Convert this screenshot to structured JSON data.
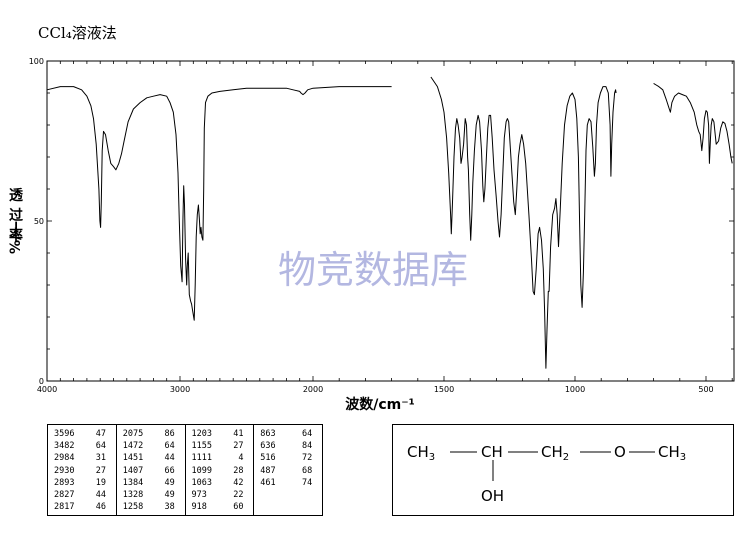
{
  "title": "CCl₄溶液法",
  "chart_data": {
    "type": "line",
    "xlabel": "波数/cm⁻¹",
    "ylabel_chars": [
      "透",
      "过",
      "率"
    ],
    "ylabel_unit": "%/—",
    "xlim": [
      4000,
      400
    ],
    "ylim": [
      0,
      100
    ],
    "x_ticks": [
      4000,
      3000,
      2000,
      1500,
      1000,
      500
    ],
    "y_ticks": [
      0,
      50,
      100
    ],
    "grid": false,
    "series": [
      {
        "segment": "4000-1700",
        "points": [
          [
            4000,
            91
          ],
          [
            3900,
            92
          ],
          [
            3800,
            92
          ],
          [
            3740,
            91
          ],
          [
            3700,
            89
          ],
          [
            3670,
            86
          ],
          [
            3650,
            82
          ],
          [
            3630,
            74
          ],
          [
            3610,
            60
          ],
          [
            3602,
            50
          ],
          [
            3597,
            48
          ],
          [
            3592,
            56
          ],
          [
            3585,
            72
          ],
          [
            3575,
            78
          ],
          [
            3560,
            77
          ],
          [
            3540,
            72
          ],
          [
            3520,
            68
          ],
          [
            3500,
            67
          ],
          [
            3482,
            66
          ],
          [
            3460,
            68
          ],
          [
            3440,
            71
          ],
          [
            3420,
            75
          ],
          [
            3390,
            81
          ],
          [
            3350,
            85
          ],
          [
            3300,
            87
          ],
          [
            3250,
            88.5
          ],
          [
            3200,
            89
          ],
          [
            3150,
            89.5
          ],
          [
            3100,
            89
          ],
          [
            3075,
            87
          ],
          [
            3050,
            84
          ],
          [
            3030,
            77
          ],
          [
            3015,
            65
          ],
          [
            3005,
            50
          ],
          [
            2995,
            36
          ],
          [
            2984,
            31
          ],
          [
            2978,
            50
          ],
          [
            2972,
            61
          ],
          [
            2966,
            55
          ],
          [
            2958,
            38
          ],
          [
            2950,
            30
          ],
          [
            2945,
            36
          ],
          [
            2938,
            40
          ],
          [
            2930,
            27
          ],
          [
            2920,
            25
          ],
          [
            2913,
            24
          ],
          [
            2905,
            22
          ],
          [
            2893,
            19
          ],
          [
            2886,
            30
          ],
          [
            2878,
            45
          ],
          [
            2870,
            52
          ],
          [
            2862,
            55
          ],
          [
            2855,
            51
          ],
          [
            2848,
            46
          ],
          [
            2842,
            48
          ],
          [
            2835,
            45
          ],
          [
            2828,
            44
          ],
          [
            2822,
            60
          ],
          [
            2817,
            79
          ],
          [
            2808,
            87
          ],
          [
            2790,
            89
          ],
          [
            2760,
            90
          ],
          [
            2700,
            90.5
          ],
          [
            2600,
            91
          ],
          [
            2500,
            91.5
          ],
          [
            2400,
            91.5
          ],
          [
            2300,
            91.5
          ],
          [
            2200,
            91.5
          ],
          [
            2150,
            91
          ],
          [
            2100,
            90.5
          ],
          [
            2090,
            90
          ],
          [
            2075,
            89.5
          ],
          [
            2060,
            90
          ],
          [
            2040,
            91
          ],
          [
            2000,
            91.5
          ],
          [
            1900,
            92
          ],
          [
            1800,
            92
          ],
          [
            1700,
            92
          ]
        ]
      },
      {
        "segment": "1550-820",
        "points": [
          [
            1550,
            95
          ],
          [
            1525,
            92
          ],
          [
            1510,
            88
          ],
          [
            1500,
            84
          ],
          [
            1490,
            76
          ],
          [
            1482,
            65
          ],
          [
            1475,
            52
          ],
          [
            1472,
            46
          ],
          [
            1468,
            55
          ],
          [
            1462,
            70
          ],
          [
            1456,
            79
          ],
          [
            1451,
            82
          ],
          [
            1446,
            80
          ],
          [
            1440,
            76
          ],
          [
            1435,
            68
          ],
          [
            1431,
            70
          ],
          [
            1425,
            74
          ],
          [
            1419,
            82
          ],
          [
            1414,
            80
          ],
          [
            1410,
            70
          ],
          [
            1407,
            66
          ],
          [
            1402,
            52
          ],
          [
            1398,
            44
          ],
          [
            1394,
            52
          ],
          [
            1390,
            62
          ],
          [
            1384,
            72
          ],
          [
            1377,
            80
          ],
          [
            1370,
            83
          ],
          [
            1364,
            81
          ],
          [
            1357,
            72
          ],
          [
            1352,
            61
          ],
          [
            1348,
            56
          ],
          [
            1344,
            60
          ],
          [
            1338,
            70
          ],
          [
            1333,
            79
          ],
          [
            1328,
            83
          ],
          [
            1322,
            83
          ],
          [
            1316,
            76
          ],
          [
            1309,
            66
          ],
          [
            1301,
            58
          ],
          [
            1294,
            50
          ],
          [
            1288,
            45
          ],
          [
            1282,
            52
          ],
          [
            1276,
            64
          ],
          [
            1270,
            76
          ],
          [
            1263,
            81
          ],
          [
            1258,
            82
          ],
          [
            1253,
            81
          ],
          [
            1246,
            72
          ],
          [
            1240,
            64
          ],
          [
            1234,
            56
          ],
          [
            1228,
            52
          ],
          [
            1222,
            60
          ],
          [
            1216,
            70
          ],
          [
            1210,
            74
          ],
          [
            1203,
            77
          ],
          [
            1196,
            74
          ],
          [
            1188,
            68
          ],
          [
            1176,
            52
          ],
          [
            1166,
            38
          ],
          [
            1160,
            28
          ],
          [
            1155,
            27
          ],
          [
            1148,
            35
          ],
          [
            1141,
            46
          ],
          [
            1135,
            48
          ],
          [
            1128,
            44
          ],
          [
            1121,
            35
          ],
          [
            1116,
            22
          ],
          [
            1111,
            4
          ],
          [
            1107,
            16
          ],
          [
            1102,
            28
          ],
          [
            1099,
            28
          ],
          [
            1093,
            42
          ],
          [
            1085,
            52
          ],
          [
            1078,
            54
          ],
          [
            1073,
            57
          ],
          [
            1068,
            52
          ],
          [
            1063,
            42
          ],
          [
            1056,
            54
          ],
          [
            1049,
            68
          ],
          [
            1040,
            80
          ],
          [
            1030,
            86
          ],
          [
            1020,
            89
          ],
          [
            1010,
            90
          ],
          [
            1000,
            88
          ],
          [
            993,
            82
          ],
          [
            987,
            70
          ],
          [
            982,
            48
          ],
          [
            978,
            30
          ],
          [
            973,
            23
          ],
          [
            968,
            34
          ],
          [
            963,
            52
          ],
          [
            958,
            72
          ],
          [
            953,
            80
          ],
          [
            946,
            82
          ],
          [
            939,
            81
          ],
          [
            932,
            73
          ],
          [
            926,
            64
          ],
          [
            922,
            68
          ],
          [
            918,
            80
          ],
          [
            912,
            87
          ],
          [
            903,
            90
          ],
          [
            893,
            92
          ],
          [
            882,
            92
          ],
          [
            873,
            90
          ],
          [
            866,
            80
          ],
          [
            863,
            64
          ],
          [
            860,
            74
          ],
          [
            855,
            84
          ],
          [
            849,
            90
          ],
          [
            845,
            91
          ],
          [
            843,
            90
          ]
        ]
      },
      {
        "segment": "700-400",
        "points": [
          [
            700,
            93
          ],
          [
            690,
            92.5
          ],
          [
            680,
            92
          ],
          [
            665,
            91
          ],
          [
            652,
            88
          ],
          [
            640,
            85
          ],
          [
            636,
            84
          ],
          [
            630,
            87
          ],
          [
            620,
            89
          ],
          [
            605,
            90
          ],
          [
            590,
            89.5
          ],
          [
            575,
            89
          ],
          [
            560,
            87
          ],
          [
            545,
            84
          ],
          [
            535,
            80
          ],
          [
            528,
            78
          ],
          [
            522,
            77
          ],
          [
            516,
            72
          ],
          [
            511,
            76
          ],
          [
            506,
            82
          ],
          [
            500,
            84.5
          ],
          [
            495,
            84
          ],
          [
            490,
            80
          ],
          [
            487,
            68
          ],
          [
            483,
            76
          ],
          [
            480,
            80
          ],
          [
            476,
            82
          ],
          [
            470,
            81
          ],
          [
            461,
            74
          ],
          [
            452,
            75
          ],
          [
            444,
            79
          ],
          [
            436,
            81
          ],
          [
            428,
            80.5
          ],
          [
            420,
            78
          ],
          [
            412,
            74
          ],
          [
            405,
            70
          ],
          [
            400,
            68
          ]
        ]
      }
    ],
    "peaks": [
      [
        3596,
        47
      ],
      [
        3482,
        64
      ],
      [
        2984,
        31
      ],
      [
        2930,
        27
      ],
      [
        2893,
        19
      ],
      [
        2827,
        44
      ],
      [
        2817,
        46
      ],
      [
        2075,
        86
      ],
      [
        1472,
        64
      ],
      [
        1451,
        44
      ],
      [
        1407,
        66
      ],
      [
        1384,
        49
      ],
      [
        1328,
        49
      ],
      [
        1258,
        38
      ],
      [
        1203,
        41
      ],
      [
        1155,
        27
      ],
      [
        1111,
        4
      ],
      [
        1099,
        28
      ],
      [
        1063,
        42
      ],
      [
        973,
        22
      ],
      [
        918,
        60
      ],
      [
        863,
        64
      ],
      [
        636,
        84
      ],
      [
        516,
        72
      ],
      [
        487,
        68
      ],
      [
        461,
        74
      ]
    ]
  },
  "watermark": "物竞数据库",
  "peak_table": {
    "columns": [
      [
        [
          "3596",
          "47"
        ],
        [
          "3482",
          "64"
        ],
        [
          "2984",
          "31"
        ],
        [
          "2930",
          "27"
        ],
        [
          "2893",
          "19"
        ],
        [
          "2827",
          "44"
        ],
        [
          "2817",
          "46"
        ]
      ],
      [
        [
          "2075",
          "86"
        ],
        [
          "1472",
          "64"
        ],
        [
          "1451",
          "44"
        ],
        [
          "1407",
          "66"
        ],
        [
          "1384",
          "49"
        ],
        [
          "1328",
          "49"
        ],
        [
          "1258",
          "38"
        ]
      ],
      [
        [
          "1203",
          "41"
        ],
        [
          "1155",
          "27"
        ],
        [
          "1111",
          "4"
        ],
        [
          "1099",
          "28"
        ],
        [
          "1063",
          "42"
        ],
        [
          "973",
          "22"
        ],
        [
          "918",
          "60"
        ]
      ],
      [
        [
          "863",
          "64"
        ],
        [
          "636",
          "84"
        ],
        [
          "516",
          "72"
        ],
        [
          "487",
          "68"
        ],
        [
          "461",
          "74"
        ]
      ]
    ]
  },
  "structure": {
    "g1": "CH",
    "g1_sub": "3",
    "g2": "CH",
    "g3": "CH",
    "g3_sub": "2",
    "g4": "O",
    "g5": "CH",
    "g5_sub": "3",
    "branch": "OH"
  }
}
